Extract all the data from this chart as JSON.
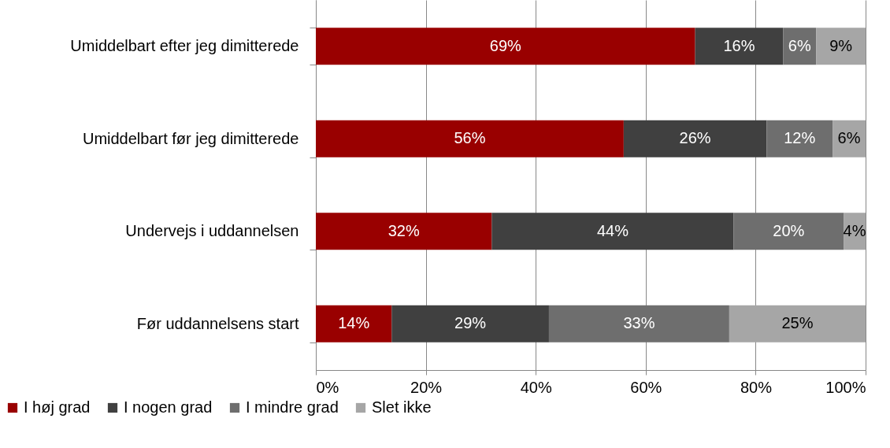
{
  "chart_data": {
    "type": "bar",
    "orientation": "horizontal",
    "stacked": true,
    "categories": [
      "Umiddelbart efter jeg dimitterede",
      "Umiddelbart før jeg dimitterede",
      "Undervejs i uddannelsen",
      "Før uddannelsens start"
    ],
    "series": [
      {
        "name": "I høj grad",
        "color": "#990000",
        "values": [
          69,
          56,
          32,
          13.8
        ],
        "value_labels": [
          "69%",
          "56%",
          "32%",
          "14%"
        ]
      },
      {
        "name": "I nogen grad",
        "color": "#404040",
        "values": [
          16,
          26,
          44,
          28.6
        ],
        "value_labels": [
          "16%",
          "26%",
          "44%",
          "29%"
        ]
      },
      {
        "name": "I mindre grad",
        "color": "#6e6e6e",
        "values": [
          6,
          12,
          20,
          32.8
        ],
        "value_labels": [
          "6%",
          "12%",
          "20%",
          "33%"
        ]
      },
      {
        "name": "Slet ikke",
        "color": "#a6a6a6",
        "values": [
          9,
          6,
          4,
          24.8
        ],
        "value_labels": [
          "9%",
          "6%",
          "4%",
          "25%"
        ]
      }
    ],
    "xlim": [
      0,
      100
    ],
    "xticks": [
      {
        "value": 0,
        "label": "0%"
      },
      {
        "value": 20,
        "label": "20%"
      },
      {
        "value": 40,
        "label": "40%"
      },
      {
        "value": 60,
        "label": "60%"
      },
      {
        "value": 80,
        "label": "80%"
      },
      {
        "value": 100,
        "label": "100%"
      }
    ],
    "grid": "x",
    "legend": "bottom left"
  }
}
